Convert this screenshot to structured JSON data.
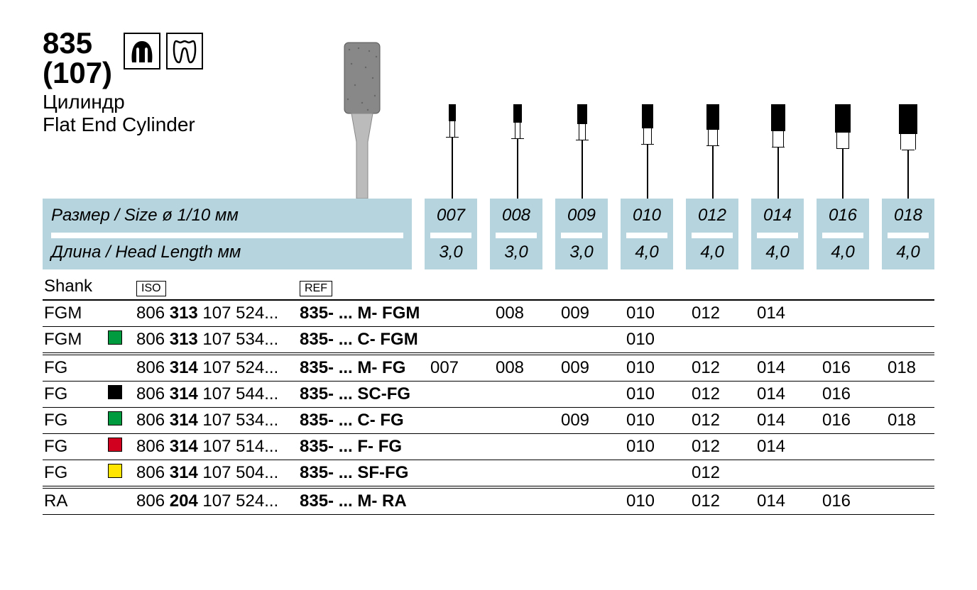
{
  "header": {
    "number": "835",
    "sub_number": "(107)",
    "name_ru": "Цилиндр",
    "name_en": "Flat End Cylinder"
  },
  "spec_labels": {
    "size": "Размер / Size ø 1/10 мм",
    "length": "Длина / Head Length мм"
  },
  "columns": {
    "shank": "Shank",
    "iso": "ISO",
    "ref": "REF"
  },
  "sizes": [
    "007",
    "008",
    "009",
    "010",
    "012",
    "014",
    "016",
    "018"
  ],
  "lengths": [
    "3,0",
    "3,0",
    "3,0",
    "4,0",
    "4,0",
    "4,0",
    "4,0",
    "4,0"
  ],
  "bur_head_heights": [
    24,
    26,
    28,
    34,
    36,
    38,
    40,
    42
  ],
  "bur_head_widths": [
    10,
    12,
    14,
    16,
    18,
    20,
    22,
    26
  ],
  "colors": {
    "header_bg": "#b6d4de",
    "green": "#009b3e",
    "black": "#000000",
    "red": "#d1001f",
    "yellow": "#ffe500",
    "none": "transparent"
  },
  "rows": [
    {
      "shank": "FGM",
      "color": "none",
      "iso_pre": "806 ",
      "iso_bold": "313",
      "iso_post": " 107 524...",
      "ref": "835- ... M-  FGM",
      "vals": [
        "",
        "008",
        "009",
        "010",
        "012",
        "014",
        "",
        ""
      ],
      "sep": "single"
    },
    {
      "shank": "FGM",
      "color": "green",
      "iso_pre": "806 ",
      "iso_bold": "313",
      "iso_post": " 107 534...",
      "ref": "835- ... C-  FGM",
      "vals": [
        "",
        "",
        "",
        "010",
        "",
        "",
        "",
        ""
      ],
      "sep": "double"
    },
    {
      "shank": "FG",
      "color": "none",
      "iso_pre": "806 ",
      "iso_bold": "314",
      "iso_post": " 107 524...",
      "ref": "835- ... M-  FG",
      "vals": [
        "007",
        "008",
        "009",
        "010",
        "012",
        "014",
        "016",
        "018"
      ],
      "sep": "single"
    },
    {
      "shank": "FG",
      "color": "black",
      "iso_pre": "806 ",
      "iso_bold": "314",
      "iso_post": " 107 544...",
      "ref": "835- ... SC-FG",
      "vals": [
        "",
        "",
        "",
        "010",
        "012",
        "014",
        "016",
        ""
      ],
      "sep": "single"
    },
    {
      "shank": "FG",
      "color": "green",
      "iso_pre": "806 ",
      "iso_bold": "314",
      "iso_post": " 107 534...",
      "ref": "835- ... C-  FG",
      "vals": [
        "",
        "",
        "009",
        "010",
        "012",
        "014",
        "016",
        "018"
      ],
      "sep": "single"
    },
    {
      "shank": "FG",
      "color": "red",
      "iso_pre": "806 ",
      "iso_bold": "314",
      "iso_post": " 107 514...",
      "ref": "835- ... F-  FG",
      "vals": [
        "",
        "",
        "",
        "010",
        "012",
        "014",
        "",
        ""
      ],
      "sep": "single"
    },
    {
      "shank": "FG",
      "color": "yellow",
      "iso_pre": "806 ",
      "iso_bold": "314",
      "iso_post": " 107 504...",
      "ref": "835- ... SF-FG",
      "vals": [
        "",
        "",
        "",
        "",
        "012",
        "",
        "",
        ""
      ],
      "sep": "double"
    },
    {
      "shank": "RA",
      "color": "none",
      "iso_pre": "806 ",
      "iso_bold": "204",
      "iso_post": " 107 524...",
      "ref": "835- ... M-  RA",
      "vals": [
        "",
        "",
        "",
        "010",
        "012",
        "014",
        "016",
        ""
      ],
      "sep": "single"
    }
  ]
}
